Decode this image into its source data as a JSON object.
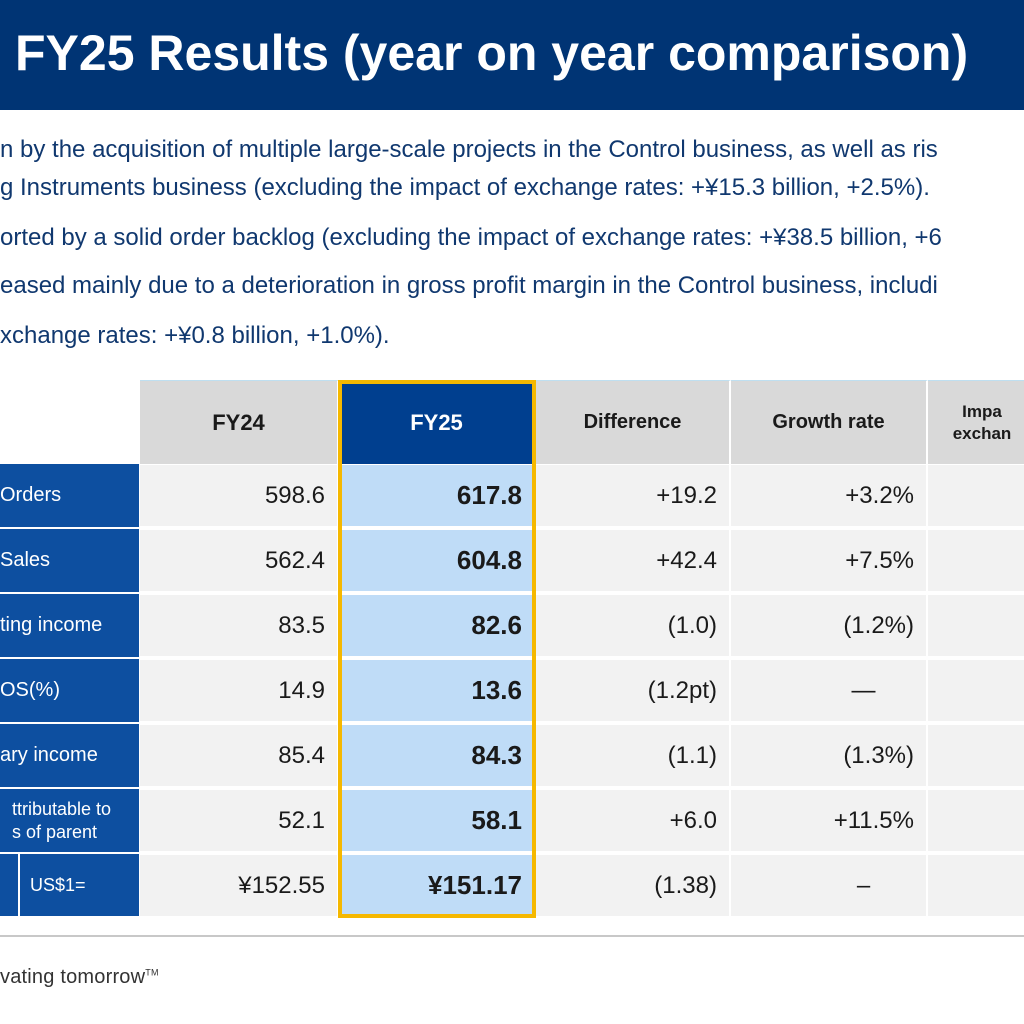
{
  "title": "FY25 Results (year on year comparison)",
  "bullets": [
    "n by the acquisition of multiple large-scale projects in the Control business, as well as ris",
    "g Instruments business (excluding the impact of exchange rates: +¥15.3 billion, +2.5%).",
    "orted by a solid order backlog (excluding the impact of exchange rates: +¥38.5 billion, +6",
    "eased mainly due to a deterioration in gross profit margin in the Control business, includi",
    "xchange rates: +¥0.8 billion, +1.0%)."
  ],
  "table": {
    "headers": {
      "fy24": "FY24",
      "fy25": "FY25",
      "difference": "Difference",
      "growth": "Growth rate",
      "impact_line1": "Impa",
      "impact_line2": "exchan"
    },
    "rows": [
      {
        "label": "Orders",
        "fy24": "598.6",
        "fy25": "617.8",
        "diff": "+19.2",
        "growth": "+3.2%"
      },
      {
        "label": "Sales",
        "fy24": "562.4",
        "fy25": "604.8",
        "diff": "+42.4",
        "growth": "+7.5%"
      },
      {
        "label": "ting income",
        "fy24": "83.5",
        "fy25": "82.6",
        "diff": "(1.0)",
        "growth": "(1.2%)"
      },
      {
        "label": "OS(%)",
        "fy24": "14.9",
        "fy25": "13.6",
        "diff": "(1.2pt)",
        "growth": "—"
      },
      {
        "label": "ary income",
        "fy24": "85.4",
        "fy25": "84.3",
        "diff": "(1.1)",
        "growth": "(1.3%)"
      },
      {
        "label_line1": "ttributable to",
        "label_line2": "s of parent",
        "fy24": "52.1",
        "fy25": "58.1",
        "diff": "+6.0",
        "growth": "+11.5%"
      },
      {
        "label": "US$1=",
        "fy24": "¥152.55",
        "fy25": "¥151.17",
        "diff": "(1.38)",
        "growth": "–"
      }
    ]
  },
  "footer": {
    "tagline": "vating tomorrow",
    "tm": "TM"
  },
  "colors": {
    "title_bg": "#003474",
    "row_label_bg": "#0d4fa0",
    "fy25_header_bg": "#003f8f",
    "fy25_cell_bg": "#bfdcf7",
    "highlight_border": "#f5b800",
    "body_text": "#10386f"
  }
}
